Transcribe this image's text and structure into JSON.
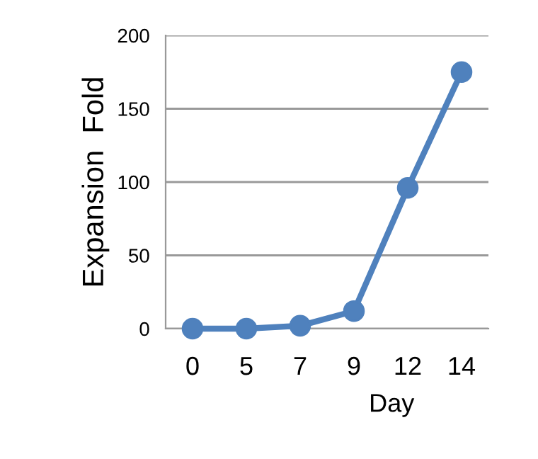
{
  "chart_data": {
    "type": "line",
    "xlabel": "Day",
    "ylabel": "Expansion  Fold",
    "categories": [
      "0",
      "5",
      "7",
      "9",
      "12",
      "14"
    ],
    "series": [
      {
        "color": "#4f81bd",
        "values": [
          0,
          0,
          2,
          12,
          96,
          175
        ]
      }
    ],
    "ylim": [
      0,
      200
    ],
    "yticks": [
      0,
      50,
      100,
      150,
      200
    ],
    "grid": "y",
    "marker": "circle",
    "line_style": "solid"
  }
}
